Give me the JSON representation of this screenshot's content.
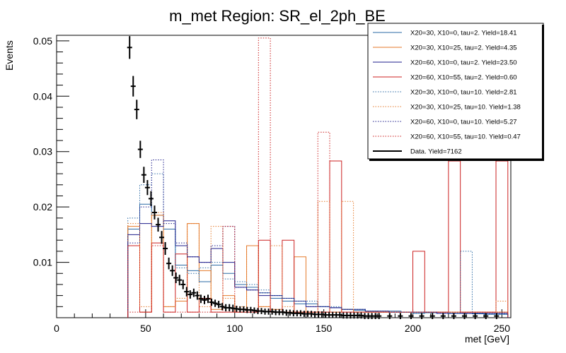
{
  "chart_data": {
    "type": "histogram",
    "title": "m_met Region: SR_el_2ph_BE",
    "xlabel": "met [GeV]",
    "ylabel": "Events",
    "xlim": [
      0,
      255
    ],
    "ylim": [
      0,
      0.051
    ],
    "x_ticks": [
      0,
      50,
      100,
      150,
      200,
      250
    ],
    "y_ticks": [
      0.01,
      0.02,
      0.03,
      0.04,
      0.05
    ],
    "y_tick_labels": [
      "0.01",
      "0.02",
      "0.03",
      "0.04",
      "0.05"
    ],
    "bin_edges": [
      40,
      46.67,
      53.33,
      60,
      66.67,
      73.33,
      80,
      86.67,
      93.33,
      100,
      106.67,
      113.33,
      120,
      126.67,
      133.33,
      140,
      146.67,
      153.33,
      160,
      166.67,
      173.33,
      180,
      186.67,
      193.33,
      200,
      206.67,
      213.33,
      220,
      226.67,
      233.33,
      240,
      246.67,
      253.33
    ],
    "series": [
      {
        "name": "X20=30, X10=0, tau=2. Yield=18.41",
        "color": "#2a6aa5",
        "style": "solid",
        "values": [
          0.016,
          0.0205,
          0.0185,
          0.016,
          0.0095,
          0.0085,
          0.0065,
          0.0095,
          0.008,
          0.006,
          0.0055,
          0.0045,
          0.0035,
          0.003,
          0.0025,
          0.0025,
          0.002,
          0.0018,
          0.0015,
          0.0013,
          0.0012,
          0.001,
          0.0012,
          0.001,
          0.0008,
          0.0009,
          0.001,
          0.0008,
          0.0008,
          0.0007,
          0.0006,
          0.0006
        ]
      },
      {
        "name": "X20=30, X10=25, tau=2. Yield=4.35",
        "color": "#e57a2a",
        "style": "solid",
        "values": [
          0.0165,
          0.001,
          0.0185,
          0.002,
          0.003,
          0.017,
          0.0085,
          0.0015,
          0.004,
          0.001,
          0.013,
          0.002,
          0.0015,
          0.001,
          0.011,
          0.001,
          0.001,
          0.001,
          0.0015,
          0.001,
          0.001,
          0.001,
          0.001,
          0.001,
          0.001,
          0.001,
          0.001,
          0.001,
          0.001,
          0.001,
          0.001,
          0.001
        ]
      },
      {
        "name": "X20=60, X10=0, tau=2. Yield=23.50",
        "color": "#1e1e8c",
        "style": "solid",
        "values": [
          0.015,
          0.017,
          0.0165,
          0.0175,
          0.013,
          0.011,
          0.01,
          0.0125,
          0.01,
          0.0055,
          0.005,
          0.004,
          0.004,
          0.0035,
          0.003,
          0.002,
          0.002,
          0.0018,
          0.0015,
          0.0015,
          0.0012,
          0.0012,
          0.001,
          0.001,
          0.001,
          0.001,
          0.0008,
          0.0008,
          0.0008,
          0.0008,
          0.0008,
          0.0008
        ]
      },
      {
        "name": "X20=60, X10=55, tau=2. Yield=0.60",
        "color": "#cc2020",
        "style": "solid",
        "values": [
          0.013,
          0.001,
          0.0135,
          0.001,
          0.0115,
          0.001,
          0.0035,
          0.001,
          0.001,
          0.001,
          0.001,
          0.014,
          0.001,
          0.014,
          0.001,
          0.001,
          0.001,
          0.0283,
          0.001,
          0.001,
          0.001,
          0.001,
          0.001,
          0.001,
          0.012,
          0.001,
          0.001,
          0.0283,
          0.001,
          0.001,
          0.001,
          0.0283
        ]
      },
      {
        "name": "X20=30, X10=0, tau=10. Yield=2.81",
        "color": "#2a6aa5",
        "style": "dotted",
        "values": [
          0.018,
          0.024,
          0.026,
          0.016,
          0.009,
          0.008,
          0.009,
          0.01,
          0.007,
          0.0065,
          0.006,
          0.005,
          0.004,
          0.0035,
          0.003,
          0.003,
          0.002,
          0.002,
          0.0015,
          0.0015,
          0.0012,
          0.0012,
          0.001,
          0.001,
          0.0008,
          0.001,
          0.001,
          0.0008,
          0.012,
          0.0008,
          0.0006,
          0.0006
        ]
      },
      {
        "name": "X20=30, X10=25, tau=10. Yield=1.38",
        "color": "#e57a2a",
        "style": "dotted",
        "values": [
          0.017,
          0.002,
          0.019,
          0.002,
          0.0035,
          0.017,
          0.002,
          0.0165,
          0.0035,
          0.002,
          0.013,
          0.002,
          0.013,
          0.002,
          0.001,
          0.001,
          0.021,
          0.001,
          0.021,
          0.001,
          0.001,
          0.001,
          0.001,
          0.001,
          0.001,
          0.001,
          0.001,
          0.001,
          0.001,
          0.001,
          0.001,
          0.003
        ]
      },
      {
        "name": "X20=60, X10=0, tau=10. Yield=5.27",
        "color": "#1e1e8c",
        "style": "dotted",
        "values": [
          0.0135,
          0.02,
          0.0285,
          0.017,
          0.0135,
          0.011,
          0.01,
          0.013,
          0.0165,
          0.0055,
          0.005,
          0.0045,
          0.004,
          0.0035,
          0.003,
          0.002,
          0.002,
          0.0018,
          0.0015,
          0.0015,
          0.0012,
          0.0012,
          0.001,
          0.001,
          0.001,
          0.001,
          0.0008,
          0.0008,
          0.0008,
          0.0008,
          0.0008,
          0.0008
        ]
      },
      {
        "name": "X20=60, X10=55, tau=10. Yield=0.47",
        "color": "#cc2020",
        "style": "dotted",
        "values": [
          0.001,
          0.001,
          0.013,
          0.001,
          0.001,
          0.001,
          0.001,
          0.001,
          0.0165,
          0.001,
          0.001,
          0.0505,
          0.001,
          0.001,
          0.001,
          0.001,
          0.0335,
          0.001,
          0.001,
          0.001,
          0.001,
          0.001,
          0.001,
          0.001,
          0.001,
          0.001,
          0.001,
          0.001,
          0.001,
          0.001,
          0.001,
          0.001
        ]
      }
    ],
    "data_points": {
      "name": "Data. Yield=7162",
      "color": "#000000",
      "x": [
        41,
        43,
        45,
        47,
        49,
        51,
        53,
        55,
        57,
        59,
        61,
        63,
        65,
        67,
        69,
        71,
        73,
        75,
        77,
        79,
        81,
        83,
        85,
        87,
        89,
        91,
        93,
        95,
        97,
        99,
        101,
        103,
        105,
        107,
        109,
        111,
        113,
        115,
        117,
        119,
        121,
        123,
        125,
        127,
        129,
        131,
        133,
        135,
        137,
        139,
        141,
        143,
        145,
        147,
        149,
        151,
        153,
        155,
        157,
        159,
        161,
        163,
        165,
        167,
        169,
        171,
        173,
        175,
        177,
        179,
        181,
        187,
        193,
        199,
        205,
        211,
        217,
        223,
        229,
        235,
        241,
        247
      ],
      "y": [
        0.0488,
        0.0418,
        0.0376,
        0.0304,
        0.0258,
        0.0235,
        0.0215,
        0.019,
        0.0168,
        0.0145,
        0.0125,
        0.0098,
        0.0085,
        0.0072,
        0.0068,
        0.006,
        0.0047,
        0.0042,
        0.0045,
        0.004,
        0.0034,
        0.0032,
        0.0034,
        0.0028,
        0.0026,
        0.0024,
        0.002,
        0.0018,
        0.0018,
        0.0017,
        0.0016,
        0.0015,
        0.0015,
        0.0014,
        0.0014,
        0.0013,
        0.0012,
        0.0012,
        0.0011,
        0.0011,
        0.0011,
        0.001,
        0.001,
        0.001,
        0.0009,
        0.0009,
        0.0008,
        0.0008,
        0.0008,
        0.0007,
        0.0007,
        0.0007,
        0.0006,
        0.0006,
        0.0006,
        0.0005,
        0.0005,
        0.0005,
        0.0005,
        0.0005,
        0.0004,
        0.0004,
        0.0004,
        0.0004,
        0.0004,
        0.0004,
        0.0003,
        0.0003,
        0.0003,
        0.0003,
        0.0003,
        0.0003,
        0.0003,
        0.0003,
        0.0003,
        0.0003,
        0.0003,
        0.0003,
        0.0003,
        0.0003,
        0.0003,
        0.0003
      ],
      "err": [
        0.0018,
        0.0016,
        0.0015,
        0.0013,
        0.0012,
        0.0011,
        0.0011,
        0.001,
        0.001,
        0.0009,
        0.0009,
        0.0008,
        0.0007,
        0.0007,
        0.0007,
        0.0006,
        0.0006,
        0.0005,
        0.0005,
        0.0005,
        0.0005,
        0.0005,
        0.0005,
        0.0004,
        0.0004,
        0.0004,
        0.0004,
        0.0004,
        0.0004,
        0.0004,
        0.0003,
        0.0003,
        0.0003,
        0.0003,
        0.0003,
        0.0003,
        0.0003,
        0.0003,
        0.0003,
        0.0003,
        0.0003,
        0.0003,
        0.0003,
        0.0003,
        0.0003,
        0.0003,
        0.0003,
        0.0003,
        0.0003,
        0.0003,
        0.0003,
        0.0003,
        0.0003,
        0.0003,
        0.0003,
        0.0003,
        0.0003,
        0.0003,
        0.0003,
        0.0003,
        0.0003,
        0.0003,
        0.0003,
        0.0003,
        0.0003,
        0.0003,
        0.0003,
        0.0003,
        0.0003,
        0.0003,
        0.0003,
        0.0003,
        0.0003,
        0.0003,
        0.0003,
        0.0003,
        0.0003,
        0.0003,
        0.0003,
        0.0003,
        0.0003,
        0.0003
      ]
    },
    "legend_position": "top-right"
  }
}
